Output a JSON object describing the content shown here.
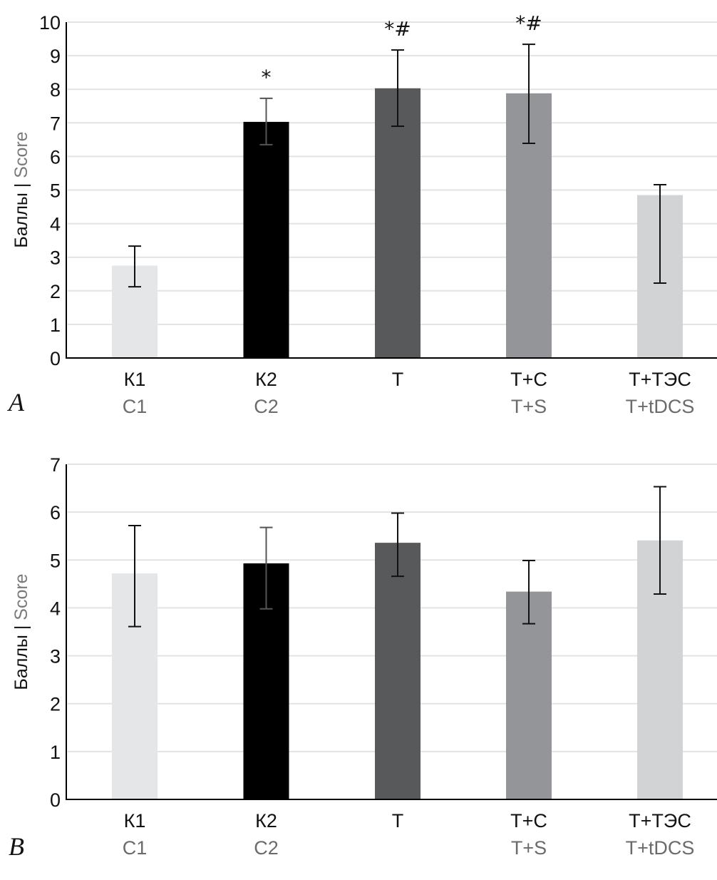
{
  "chart_data": [
    {
      "type": "bar",
      "panel_label": "A",
      "title": "",
      "ylabel": {
        "ru": "Баллы",
        "sep": " | ",
        "en": "Score"
      },
      "xlabel": "",
      "ylim": [
        0,
        10
      ],
      "yticks": [
        "0",
        "1",
        "2",
        "3",
        "4",
        "5",
        "6",
        "7",
        "8",
        "9",
        "10"
      ],
      "grid": true,
      "categories": [
        {
          "ru": "К1",
          "en": "C1"
        },
        {
          "ru": "К2",
          "en": "C2"
        },
        {
          "ru": "Т",
          "en": ""
        },
        {
          "ru": "Т+С",
          "en": "T+S"
        },
        {
          "ru": "Т+ТЭС",
          "en": "T+tDCS"
        }
      ],
      "values": [
        2.75,
        7.03,
        8.03,
        7.88,
        4.85
      ],
      "error_low": [
        2.12,
        6.35,
        6.9,
        6.39,
        2.23
      ],
      "error_high": [
        3.33,
        7.73,
        9.17,
        9.34,
        5.16
      ],
      "annotations": [
        "",
        "*",
        "*#",
        "*#",
        ""
      ],
      "colors": [
        "#e5e6e8",
        "#000000",
        "#58595b",
        "#939598",
        "#d1d3d4"
      ],
      "errorbar_colors": [
        "#111111",
        "#555555",
        "#111111",
        "#111111",
        "#111111"
      ]
    },
    {
      "type": "bar",
      "panel_label": "B",
      "title": "",
      "ylabel": {
        "ru": "Баллы",
        "sep": " | ",
        "en": "Score"
      },
      "xlabel": "",
      "ylim": [
        0,
        7
      ],
      "yticks": [
        "0",
        "1",
        "2",
        "3",
        "4",
        "5",
        "6",
        "7"
      ],
      "grid": true,
      "categories": [
        {
          "ru": "К1",
          "en": "C1"
        },
        {
          "ru": "К2",
          "en": "C2"
        },
        {
          "ru": "Т",
          "en": ""
        },
        {
          "ru": "Т+С",
          "en": "T+S"
        },
        {
          "ru": "Т+ТЭС",
          "en": "T+tDCS"
        }
      ],
      "values": [
        4.72,
        4.93,
        5.36,
        4.34,
        5.41
      ],
      "error_low": [
        3.61,
        3.98,
        4.66,
        3.67,
        4.29
      ],
      "error_high": [
        5.72,
        5.68,
        5.98,
        4.99,
        6.53
      ],
      "annotations": [
        "",
        "",
        "",
        "",
        ""
      ],
      "colors": [
        "#e5e6e8",
        "#000000",
        "#58595b",
        "#939598",
        "#d1d3d4"
      ],
      "errorbar_colors": [
        "#111111",
        "#555555",
        "#111111",
        "#111111",
        "#111111"
      ]
    }
  ]
}
